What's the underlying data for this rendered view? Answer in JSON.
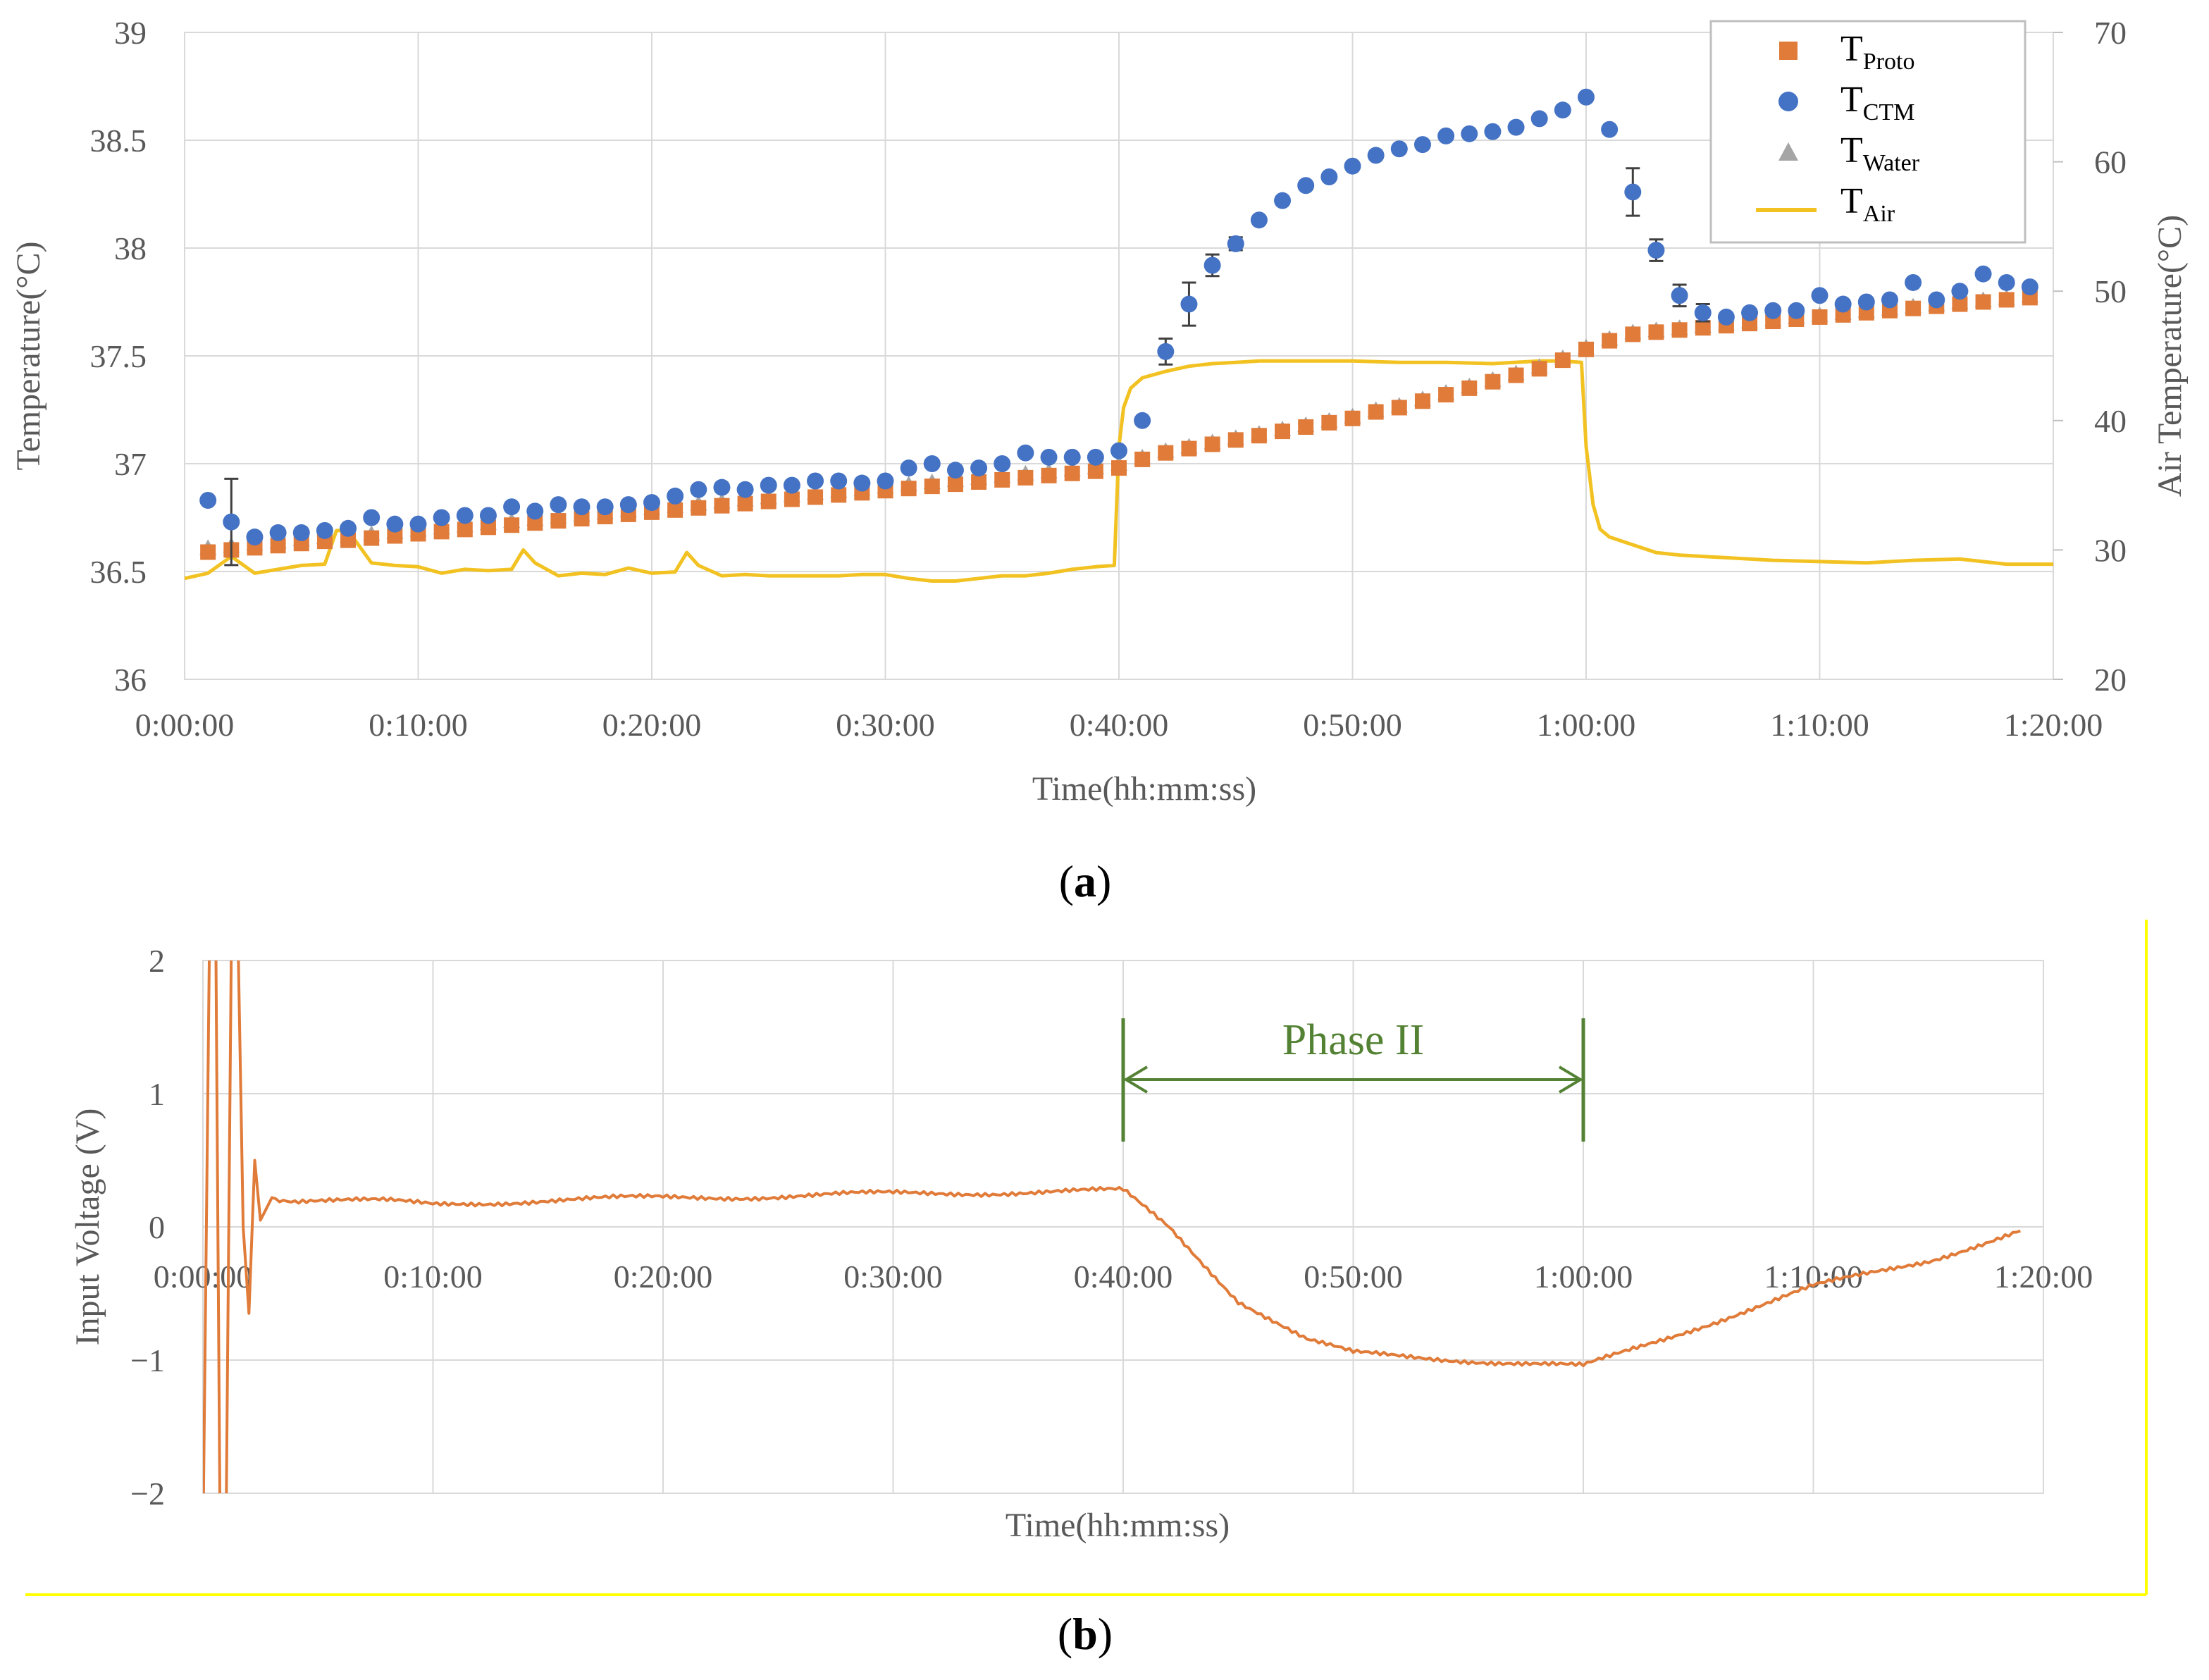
{
  "figure": {
    "label_a": "a",
    "label_b": "b"
  },
  "chart_data": [
    {
      "type": "scatter",
      "panel": "a",
      "xlabel": "Time(hh:mm:ss)",
      "ylabel": "Temperature(°C)",
      "y2label": "Air Temperature(°C)",
      "xlim": [
        0,
        80
      ],
      "ylim": [
        36,
        39
      ],
      "y2lim": [
        20,
        70
      ],
      "x_ticks": [
        "0:00:00",
        "0:10:00",
        "0:20:00",
        "0:30:00",
        "0:40:00",
        "0:50:00",
        "1:00:00",
        "1:10:00",
        "1:20:00"
      ],
      "y_ticks": [
        "36",
        "36.5",
        "37",
        "37.5",
        "38",
        "38.5",
        "39"
      ],
      "y2_ticks": [
        "20",
        "30",
        "40",
        "50",
        "60",
        "70"
      ],
      "legend_position": "top-right",
      "legend": [
        {
          "main": "T",
          "sub": "Proto",
          "marker": "square",
          "color": "#e07b39"
        },
        {
          "main": "T",
          "sub": "CTM",
          "marker": "circle",
          "color": "#4472c4"
        },
        {
          "main": "T",
          "sub": "Water",
          "marker": "triangle",
          "color": "#a5a5a5"
        },
        {
          "main": "T",
          "sub": "Air",
          "marker": "line",
          "color": "#f2c222"
        }
      ],
      "series": [
        {
          "name": "T_Proto",
          "axis": "left",
          "x": [
            1,
            2,
            3,
            4,
            5,
            6,
            7,
            8,
            9,
            10,
            11,
            12,
            13,
            14,
            15,
            16,
            17,
            18,
            19,
            20,
            21,
            22,
            23,
            24,
            25,
            26,
            27,
            28,
            29,
            30,
            31,
            32,
            33,
            34,
            35,
            36,
            37,
            38,
            39,
            40,
            41,
            42,
            43,
            44,
            45,
            46,
            47,
            48,
            49,
            50,
            51,
            52,
            53,
            54,
            55,
            56,
            57,
            58,
            59,
            60,
            61,
            62,
            63,
            64,
            65,
            66,
            67,
            68,
            69,
            70,
            71,
            72,
            73,
            74,
            75,
            76,
            77,
            78,
            79
          ],
          "values": [
            36.59,
            36.6,
            36.61,
            36.62,
            36.63,
            36.64,
            36.645,
            36.655,
            36.665,
            36.675,
            36.685,
            36.695,
            36.705,
            36.715,
            36.725,
            36.735,
            36.745,
            36.755,
            36.765,
            36.775,
            36.785,
            36.795,
            36.805,
            36.815,
            36.825,
            36.835,
            36.845,
            36.855,
            36.865,
            36.875,
            36.885,
            36.895,
            36.905,
            36.915,
            36.925,
            36.935,
            36.945,
            36.955,
            36.965,
            36.98,
            37.02,
            37.05,
            37.07,
            37.09,
            37.11,
            37.13,
            37.15,
            37.17,
            37.19,
            37.21,
            37.24,
            37.26,
            37.29,
            37.32,
            37.35,
            37.38,
            37.41,
            37.44,
            37.48,
            37.53,
            37.57,
            37.6,
            37.61,
            37.62,
            37.63,
            37.64,
            37.65,
            37.66,
            37.67,
            37.68,
            37.69,
            37.7,
            37.71,
            37.72,
            37.73,
            37.74,
            37.75,
            37.76,
            37.77
          ]
        },
        {
          "name": "T_Water",
          "axis": "left",
          "x": [
            1,
            2,
            3,
            4,
            5,
            6,
            7,
            8,
            9,
            10,
            11,
            12,
            13,
            14,
            15,
            16,
            17,
            18,
            19,
            20,
            21,
            22,
            23,
            24,
            25,
            26,
            27,
            28,
            29,
            30,
            31,
            32,
            33,
            34,
            35,
            36,
            37,
            38,
            39,
            40,
            41,
            42,
            43,
            44,
            45,
            46,
            47,
            48,
            49,
            50,
            51,
            52,
            53,
            54,
            55,
            56,
            57,
            58,
            59,
            60,
            61,
            62,
            63,
            64,
            65,
            66,
            67,
            68,
            69,
            70,
            71,
            72,
            73,
            74,
            75,
            76,
            77,
            78,
            79
          ],
          "values": [
            36.61,
            36.62,
            36.63,
            36.64,
            36.65,
            36.66,
            36.665,
            36.675,
            36.685,
            36.695,
            36.705,
            36.715,
            36.725,
            36.735,
            36.745,
            36.755,
            36.765,
            36.775,
            36.785,
            36.795,
            36.805,
            36.815,
            36.825,
            36.835,
            36.845,
            36.855,
            36.865,
            36.875,
            36.885,
            36.895,
            36.905,
            36.915,
            36.925,
            36.935,
            36.945,
            36.955,
            36.965,
            36.975,
            36.985,
            37.0,
            37.03,
            37.06,
            37.08,
            37.1,
            37.12,
            37.14,
            37.16,
            37.18,
            37.2,
            37.22,
            37.25,
            37.27,
            37.3,
            37.33,
            37.36,
            37.39,
            37.42,
            37.45,
            37.49,
            37.54,
            37.58,
            37.61,
            37.62,
            37.63,
            37.64,
            37.65,
            37.66,
            37.67,
            37.68,
            37.69,
            37.7,
            37.71,
            37.72,
            37.73,
            37.74,
            37.75,
            37.76,
            37.77,
            37.78
          ]
        },
        {
          "name": "T_CTM",
          "axis": "left",
          "x": [
            1,
            2,
            3,
            4,
            5,
            6,
            7,
            8,
            9,
            10,
            11,
            12,
            13,
            14,
            15,
            16,
            17,
            18,
            19,
            20,
            21,
            22,
            23,
            24,
            25,
            26,
            27,
            28,
            29,
            30,
            31,
            32,
            33,
            34,
            35,
            36,
            37,
            38,
            39,
            40,
            41,
            42,
            43,
            44,
            45,
            46,
            47,
            48,
            49,
            50,
            51,
            52,
            53,
            54,
            55,
            56,
            57,
            58,
            59,
            60,
            61,
            62,
            63,
            64,
            65,
            66,
            67,
            68,
            69,
            70,
            71,
            72,
            73,
            74,
            75,
            76,
            77,
            78,
            79
          ],
          "values": [
            36.83,
            36.73,
            36.66,
            36.68,
            36.68,
            36.69,
            36.7,
            36.75,
            36.72,
            36.72,
            36.75,
            36.76,
            36.76,
            36.8,
            36.78,
            36.81,
            36.8,
            36.8,
            36.81,
            36.82,
            36.85,
            36.88,
            36.89,
            36.88,
            36.9,
            36.9,
            36.92,
            36.92,
            36.91,
            36.92,
            36.98,
            37.0,
            36.97,
            36.98,
            37.0,
            37.05,
            37.03,
            37.03,
            37.03,
            37.06,
            37.2,
            37.52,
            37.74,
            37.92,
            38.02,
            38.13,
            38.22,
            38.29,
            38.33,
            38.38,
            38.43,
            38.46,
            38.48,
            38.52,
            38.53,
            38.54,
            38.56,
            38.6,
            38.64,
            38.7,
            38.55,
            38.26,
            37.99,
            37.78,
            37.7,
            37.68,
            37.7,
            37.71,
            37.71,
            37.78,
            37.74,
            37.75,
            37.76,
            37.84,
            37.76,
            37.8,
            37.88,
            37.84,
            37.82
          ],
          "error_bars": [
            {
              "x": 2,
              "err": 0.2
            },
            {
              "x": 42,
              "err": 0.06
            },
            {
              "x": 43,
              "err": 0.1
            },
            {
              "x": 44,
              "err": 0.05
            },
            {
              "x": 45,
              "err": 0.03
            },
            {
              "x": 62,
              "err": 0.11
            },
            {
              "x": 63,
              "err": 0.05
            },
            {
              "x": 64,
              "err": 0.05
            },
            {
              "x": 65,
              "err": 0.04
            }
          ]
        },
        {
          "name": "T_Air",
          "axis": "right",
          "x": [
            0,
            1,
            2,
            3,
            4,
            5,
            6,
            6.5,
            7,
            8,
            9,
            10,
            11,
            12,
            13,
            14,
            14.5,
            15,
            16,
            17,
            18,
            19,
            20,
            21,
            21.5,
            22,
            23,
            24,
            25,
            26,
            27,
            28,
            29,
            30,
            31,
            32,
            33,
            34,
            35,
            36,
            37,
            38,
            39,
            39.8,
            40,
            40.2,
            40.5,
            41,
            42,
            43,
            44,
            45,
            46,
            48,
            50,
            52,
            54,
            56,
            58,
            59,
            59.8,
            60,
            60.3,
            60.6,
            61,
            62,
            63,
            64,
            65,
            66,
            68,
            70,
            72,
            74,
            76,
            78,
            80
          ],
          "values": [
            27.8,
            28.2,
            29.5,
            28.2,
            28.5,
            28.8,
            28.9,
            31.5,
            31.5,
            29.0,
            28.8,
            28.7,
            28.2,
            28.5,
            28.4,
            28.5,
            30.0,
            29.0,
            28.0,
            28.2,
            28.1,
            28.6,
            28.2,
            28.3,
            29.8,
            28.8,
            28.0,
            28.1,
            28.0,
            28.0,
            28.0,
            28.0,
            28.1,
            28.1,
            27.8,
            27.6,
            27.6,
            27.8,
            28.0,
            28.0,
            28.2,
            28.5,
            28.7,
            28.8,
            38.0,
            41.0,
            42.5,
            43.3,
            43.8,
            44.2,
            44.4,
            44.5,
            44.6,
            44.6,
            44.6,
            44.5,
            44.5,
            44.4,
            44.6,
            44.6,
            44.5,
            38.0,
            33.5,
            31.6,
            31.0,
            30.4,
            29.8,
            29.6,
            29.5,
            29.4,
            29.2,
            29.1,
            29.0,
            29.2,
            29.3,
            28.9,
            28.9
          ]
        }
      ]
    },
    {
      "type": "line",
      "panel": "b",
      "xlabel": "Time(hh:mm:ss)",
      "ylabel": "Input Voltage (V)",
      "xlim": [
        0,
        80
      ],
      "ylim": [
        -2,
        2
      ],
      "x_ticks": [
        "0:00:00",
        "0:10:00",
        "0:20:00",
        "0:30:00",
        "0:40:00",
        "0:50:00",
        "1:00:00",
        "1:10:00",
        "1:20:00"
      ],
      "y_ticks": [
        "−2",
        "−1",
        "0",
        "1",
        "2"
      ],
      "annotation": {
        "text": "Phase II",
        "x_start": 40,
        "x_end": 60,
        "color": "#548235"
      },
      "series": [
        {
          "name": "Input Voltage",
          "color": "#e07b39",
          "x": [
            0,
            0.3,
            0.55,
            0.75,
            1.0,
            1.25,
            1.5,
            1.75,
            2.0,
            2.25,
            2.5,
            3,
            4,
            5,
            8,
            10,
            15,
            20,
            25,
            30,
            35,
            40,
            42,
            45,
            48,
            50,
            55,
            60,
            65,
            70,
            75,
            79
          ],
          "values": [
            -2.4,
            2.4,
            2.4,
            -2.4,
            -2.4,
            2.4,
            2.4,
            0.0,
            -0.65,
            0.5,
            0.05,
            0.22,
            0.2,
            0.2,
            0.19,
            0.17,
            0.2,
            0.22,
            0.23,
            0.25,
            0.26,
            0.27,
            0.0,
            -0.55,
            -0.85,
            -0.95,
            -1.0,
            -1.05,
            -0.75,
            -0.45,
            -0.25,
            -0.03
          ]
        }
      ]
    }
  ]
}
